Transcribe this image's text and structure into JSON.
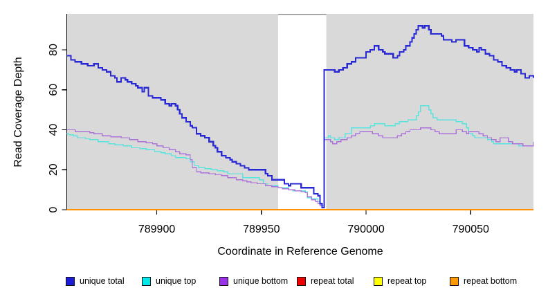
{
  "y_axis": {
    "label": "Read Coverage Depth",
    "ticks": [
      0,
      20,
      40,
      60,
      80
    ]
  },
  "x_axis": {
    "label": "Coordinate in Reference Genome",
    "ticks": [
      789900,
      789950,
      790000,
      790050
    ]
  },
  "legend": [
    {
      "label": "unique total",
      "color": "#1c1cd8"
    },
    {
      "label": "unique top",
      "color": "#00e8e8"
    },
    {
      "label": "unique bottom",
      "color": "#9932e8"
    },
    {
      "label": "repeat total",
      "color": "#ee0000"
    },
    {
      "label": "repeat top",
      "color": "#ffff00"
    },
    {
      "label": "repeat bottom",
      "color": "#ff9900"
    }
  ],
  "chart_data": {
    "type": "line",
    "step": true,
    "xlabel": "Coordinate in Reference Genome",
    "ylabel": "Read Coverage Depth",
    "xlim": [
      789857,
      790080
    ],
    "ylim": [
      0,
      98
    ],
    "x_ticks": [
      789900,
      789950,
      790000,
      790050
    ],
    "y_ticks": [
      0,
      20,
      40,
      60,
      80
    ],
    "background_color": "#d9d9d9",
    "gap_region": {
      "x_start": 789958,
      "x_end": 789981,
      "color": "#ffffff",
      "border_color": "#8c8c8c"
    },
    "grid": false,
    "legend_position": "bottom",
    "series": [
      {
        "name": "unique total",
        "color": "#2828d4",
        "width": 2.2,
        "points": [
          [
            789857,
            77
          ],
          [
            789859,
            75
          ],
          [
            789861,
            74
          ],
          [
            789864,
            73
          ],
          [
            789867,
            72
          ],
          [
            789869,
            72
          ],
          [
            789870,
            73
          ],
          [
            789872,
            71
          ],
          [
            789874,
            70
          ],
          [
            789876,
            69
          ],
          [
            789878,
            67
          ],
          [
            789880,
            66
          ],
          [
            789881,
            64
          ],
          [
            789883,
            66
          ],
          [
            789885,
            65
          ],
          [
            789886,
            64
          ],
          [
            789888,
            63
          ],
          [
            789890,
            62
          ],
          [
            789891,
            61
          ],
          [
            789893,
            59
          ],
          [
            789894,
            61
          ],
          [
            789896,
            57
          ],
          [
            789898,
            56
          ],
          [
            789902,
            55
          ],
          [
            789904,
            53
          ],
          [
            789906,
            52
          ],
          [
            789907,
            53
          ],
          [
            789909,
            52
          ],
          [
            789910,
            50
          ],
          [
            789911,
            48
          ],
          [
            789912,
            46
          ],
          [
            789914,
            44
          ],
          [
            789916,
            42
          ],
          [
            789917,
            41
          ],
          [
            789919,
            38
          ],
          [
            789921,
            37
          ],
          [
            789923,
            36
          ],
          [
            789925,
            34
          ],
          [
            789927,
            32
          ],
          [
            789928,
            31
          ],
          [
            789929,
            29
          ],
          [
            789931,
            27
          ],
          [
            789933,
            26
          ],
          [
            789935,
            25
          ],
          [
            789936,
            24
          ],
          [
            789938,
            23
          ],
          [
            789940,
            22
          ],
          [
            789942,
            21
          ],
          [
            789944,
            20
          ],
          [
            789951,
            20
          ],
          [
            789952,
            18
          ],
          [
            789953,
            17
          ],
          [
            789955,
            15
          ],
          [
            789961,
            13
          ],
          [
            789963,
            12
          ],
          [
            789964,
            13
          ],
          [
            789969,
            11
          ],
          [
            789974,
            11
          ],
          [
            789975,
            8
          ],
          [
            789977,
            7
          ],
          [
            789978,
            3
          ],
          [
            789979,
            1
          ],
          [
            789980,
            70
          ],
          [
            789983,
            70
          ],
          [
            789985,
            69
          ],
          [
            789987,
            70
          ],
          [
            789989,
            71
          ],
          [
            789991,
            73
          ],
          [
            789993,
            74
          ],
          [
            789995,
            76
          ],
          [
            789998,
            76
          ],
          [
            790000,
            79
          ],
          [
            790002,
            80
          ],
          [
            790004,
            82
          ],
          [
            790006,
            80
          ],
          [
            790008,
            79
          ],
          [
            790009,
            78
          ],
          [
            790012,
            78
          ],
          [
            790013,
            76
          ],
          [
            790015,
            77
          ],
          [
            790016,
            79
          ],
          [
            790018,
            80
          ],
          [
            790019,
            82
          ],
          [
            790021,
            84
          ],
          [
            790022,
            86
          ],
          [
            790023,
            88
          ],
          [
            790024,
            90
          ],
          [
            790025,
            92
          ],
          [
            790027,
            91
          ],
          [
            790028,
            92
          ],
          [
            790030,
            90
          ],
          [
            790031,
            88
          ],
          [
            790034,
            88
          ],
          [
            790036,
            87
          ],
          [
            790037,
            85
          ],
          [
            790040,
            85
          ],
          [
            790041,
            84
          ],
          [
            790043,
            85
          ],
          [
            790045,
            85
          ],
          [
            790047,
            82
          ],
          [
            790049,
            81
          ],
          [
            790051,
            80
          ],
          [
            790053,
            79
          ],
          [
            790054,
            81
          ],
          [
            790055,
            80
          ],
          [
            790057,
            78
          ],
          [
            790059,
            77
          ],
          [
            790061,
            75
          ],
          [
            790063,
            74
          ],
          [
            790065,
            72
          ],
          [
            790067,
            71
          ],
          [
            790069,
            70
          ],
          [
            790071,
            69
          ],
          [
            790072,
            70
          ],
          [
            790074,
            68
          ],
          [
            790076,
            66
          ],
          [
            790078,
            67
          ],
          [
            790080,
            66
          ]
        ]
      },
      {
        "name": "unique top",
        "color": "#58e4de",
        "width": 1.4,
        "points": [
          [
            789857,
            38
          ],
          [
            789858,
            37.5
          ],
          [
            789860,
            37
          ],
          [
            789862,
            36
          ],
          [
            789866,
            35.5
          ],
          [
            789868,
            35
          ],
          [
            789872,
            34
          ],
          [
            789877,
            33
          ],
          [
            789880,
            32.5
          ],
          [
            789884,
            32
          ],
          [
            789888,
            31
          ],
          [
            789892,
            30.5
          ],
          [
            789895,
            30
          ],
          [
            789899,
            29
          ],
          [
            789902,
            28.5
          ],
          [
            789904,
            28
          ],
          [
            789907,
            27
          ],
          [
            789909,
            26
          ],
          [
            789914,
            25.5
          ],
          [
            789916,
            24
          ],
          [
            789918,
            22
          ],
          [
            789920,
            21
          ],
          [
            789923,
            20.5
          ],
          [
            789926,
            20
          ],
          [
            789929,
            19.5
          ],
          [
            789932,
            19
          ],
          [
            789934,
            18
          ],
          [
            789941,
            16
          ],
          [
            789945,
            16
          ],
          [
            789949,
            15
          ],
          [
            789951,
            13
          ],
          [
            789953,
            12
          ],
          [
            789958,
            11
          ],
          [
            789963,
            10
          ],
          [
            789965,
            9.5
          ],
          [
            789971,
            9
          ],
          [
            789972,
            6
          ],
          [
            789974,
            5.5
          ],
          [
            789977,
            4
          ],
          [
            789978,
            2
          ],
          [
            789980,
            36
          ],
          [
            789982,
            37
          ],
          [
            789983,
            36
          ],
          [
            789985,
            35
          ],
          [
            789987,
            36
          ],
          [
            789990,
            38
          ],
          [
            789992,
            38
          ],
          [
            789993,
            41
          ],
          [
            789998,
            41
          ],
          [
            790002,
            42
          ],
          [
            790004,
            43
          ],
          [
            790008,
            43
          ],
          [
            790009,
            42
          ],
          [
            790012,
            42
          ],
          [
            790014,
            43
          ],
          [
            790016,
            44
          ],
          [
            790019,
            44
          ],
          [
            790020,
            45
          ],
          [
            790023,
            45
          ],
          [
            790024,
            47
          ],
          [
            790025,
            49
          ],
          [
            790026,
            52
          ],
          [
            790029,
            52
          ],
          [
            790030,
            50
          ],
          [
            790031,
            48
          ],
          [
            790032,
            46
          ],
          [
            790034,
            45
          ],
          [
            790041,
            45
          ],
          [
            790043,
            44
          ],
          [
            790046,
            43
          ],
          [
            790048,
            41
          ],
          [
            790049,
            38
          ],
          [
            790051,
            37
          ],
          [
            790052,
            36
          ],
          [
            790057,
            36
          ],
          [
            790058,
            35
          ],
          [
            790060,
            34
          ],
          [
            790061,
            33
          ],
          [
            790071,
            33
          ],
          [
            790073,
            32
          ],
          [
            790078,
            32
          ],
          [
            790080,
            33
          ]
        ]
      },
      {
        "name": "unique bottom",
        "color": "#ab72dc",
        "width": 1.4,
        "points": [
          [
            789857,
            40
          ],
          [
            789861,
            39
          ],
          [
            789868,
            38.5
          ],
          [
            789870,
            38
          ],
          [
            789874,
            37
          ],
          [
            789878,
            36.5
          ],
          [
            789883,
            36
          ],
          [
            789887,
            35
          ],
          [
            789891,
            34
          ],
          [
            789895,
            33.5
          ],
          [
            789898,
            33
          ],
          [
            789900,
            32
          ],
          [
            789903,
            31
          ],
          [
            789906,
            30
          ],
          [
            789909,
            29
          ],
          [
            789911,
            28
          ],
          [
            789914,
            27.5
          ],
          [
            789916,
            25
          ],
          [
            789917,
            21
          ],
          [
            789919,
            19
          ],
          [
            789921,
            18.5
          ],
          [
            789925,
            18
          ],
          [
            789928,
            17.5
          ],
          [
            789931,
            17
          ],
          [
            789934,
            16
          ],
          [
            789938,
            15
          ],
          [
            789941,
            14.5
          ],
          [
            789943,
            14
          ],
          [
            789945,
            13.5
          ],
          [
            789948,
            13
          ],
          [
            789952,
            12
          ],
          [
            789955,
            11.5
          ],
          [
            789958,
            11
          ],
          [
            789960,
            10.5
          ],
          [
            789963,
            10
          ],
          [
            789966,
            9.5
          ],
          [
            789969,
            9
          ],
          [
            789971,
            8.5
          ],
          [
            789972,
            6.5
          ],
          [
            789974,
            5
          ],
          [
            789976,
            4
          ],
          [
            789977,
            3
          ],
          [
            789978,
            2
          ],
          [
            789979,
            1
          ],
          [
            789980,
            35
          ],
          [
            789982,
            35
          ],
          [
            789983,
            34
          ],
          [
            789984,
            33
          ],
          [
            789986,
            34
          ],
          [
            789988,
            35
          ],
          [
            789990,
            35
          ],
          [
            789991,
            36
          ],
          [
            789993,
            37
          ],
          [
            789995,
            38
          ],
          [
            789997,
            39
          ],
          [
            790001,
            39
          ],
          [
            790003,
            38
          ],
          [
            790006,
            37
          ],
          [
            790008,
            36
          ],
          [
            790013,
            36
          ],
          [
            790015,
            37
          ],
          [
            790017,
            38
          ],
          [
            790019,
            39
          ],
          [
            790021,
            40
          ],
          [
            790024,
            40
          ],
          [
            790026,
            41
          ],
          [
            790029,
            41
          ],
          [
            790031,
            40
          ],
          [
            790033,
            39
          ],
          [
            790035,
            38
          ],
          [
            790041,
            38
          ],
          [
            790043,
            40
          ],
          [
            790045,
            40
          ],
          [
            790046,
            39
          ],
          [
            790048,
            38
          ],
          [
            790049,
            39
          ],
          [
            790052,
            39
          ],
          [
            790054,
            38
          ],
          [
            790056,
            37
          ],
          [
            790058,
            36
          ],
          [
            790060,
            35
          ],
          [
            790062,
            34
          ],
          [
            790064,
            36
          ],
          [
            790066,
            36
          ],
          [
            790068,
            34
          ],
          [
            790070,
            33
          ],
          [
            790073,
            33
          ],
          [
            790075,
            32
          ],
          [
            790078,
            32
          ],
          [
            790080,
            34
          ]
        ]
      },
      {
        "name": "repeat total",
        "color": "#ee0000",
        "width": 1.4,
        "points": [
          [
            789857,
            0
          ],
          [
            790080,
            0
          ]
        ]
      },
      {
        "name": "repeat top",
        "color": "#ffff00",
        "width": 1.4,
        "points": [
          [
            789857,
            0
          ],
          [
            790080,
            0
          ]
        ]
      },
      {
        "name": "repeat bottom",
        "color": "#ff9400",
        "width": 1.6,
        "points": [
          [
            789857,
            0
          ],
          [
            790080,
            0
          ]
        ]
      }
    ]
  }
}
